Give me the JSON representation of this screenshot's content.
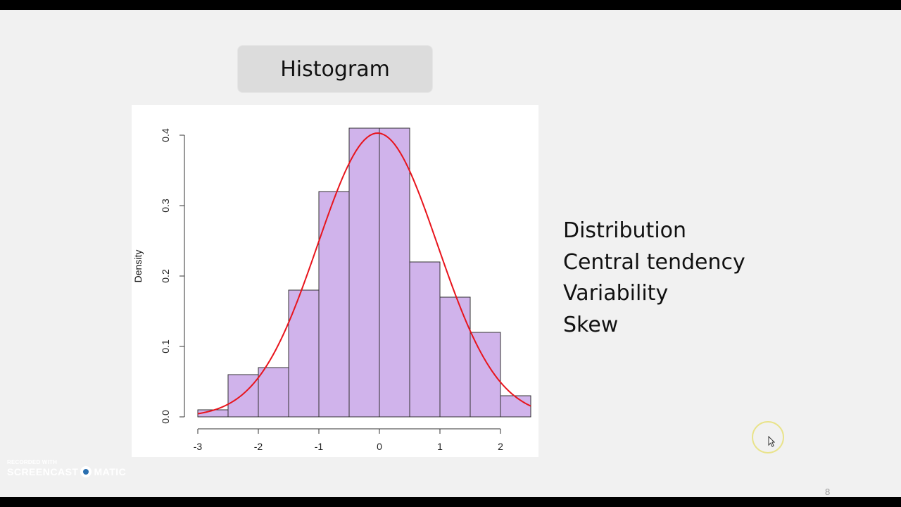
{
  "slide": {
    "title": "Histogram",
    "bullets": [
      "Distribution",
      "Central tendency",
      "Variability",
      "Skew"
    ],
    "slide_number": "8"
  },
  "watermark": {
    "line1": "RECORDED WITH",
    "brand_left": "SCREENCAST",
    "brand_right": "MATIC"
  },
  "colors": {
    "bar_fill": "#d0b3eb",
    "bar_stroke": "#333333",
    "curve": "#e8141c",
    "title_box": "#dcdcdc"
  },
  "icons": [
    "screencast-logo-icon",
    "mouse-cursor-icon"
  ],
  "chart_data": {
    "type": "bar",
    "histogram_bins": [
      {
        "from": -3.0,
        "to": -2.5,
        "density": 0.01
      },
      {
        "from": -2.5,
        "to": -2.0,
        "density": 0.06
      },
      {
        "from": -2.0,
        "to": -1.5,
        "density": 0.07
      },
      {
        "from": -1.5,
        "to": -1.0,
        "density": 0.18
      },
      {
        "from": -1.0,
        "to": -0.5,
        "density": 0.32
      },
      {
        "from": -0.5,
        "to": 0.0,
        "density": 0.41
      },
      {
        "from": 0.0,
        "to": 0.5,
        "density": 0.41
      },
      {
        "from": 0.5,
        "to": 1.0,
        "density": 0.22
      },
      {
        "from": 1.0,
        "to": 1.5,
        "density": 0.17
      },
      {
        "from": 1.5,
        "to": 2.0,
        "density": 0.12
      },
      {
        "from": 2.0,
        "to": 2.5,
        "density": 0.03
      }
    ],
    "overlay_curve": {
      "type": "normal-density",
      "mean": -0.03,
      "sd": 0.99
    },
    "title": "",
    "xlabel": "",
    "ylabel": "Density",
    "x_ticks": [
      "-3",
      "-2",
      "-1",
      "0",
      "1",
      "2"
    ],
    "y_ticks": [
      "0.0",
      "0.1",
      "0.2",
      "0.3",
      "0.4"
    ],
    "xlim": [
      -3.0,
      2.5
    ],
    "ylim": [
      0,
      0.4
    ],
    "grid": false,
    "legend": "none"
  }
}
